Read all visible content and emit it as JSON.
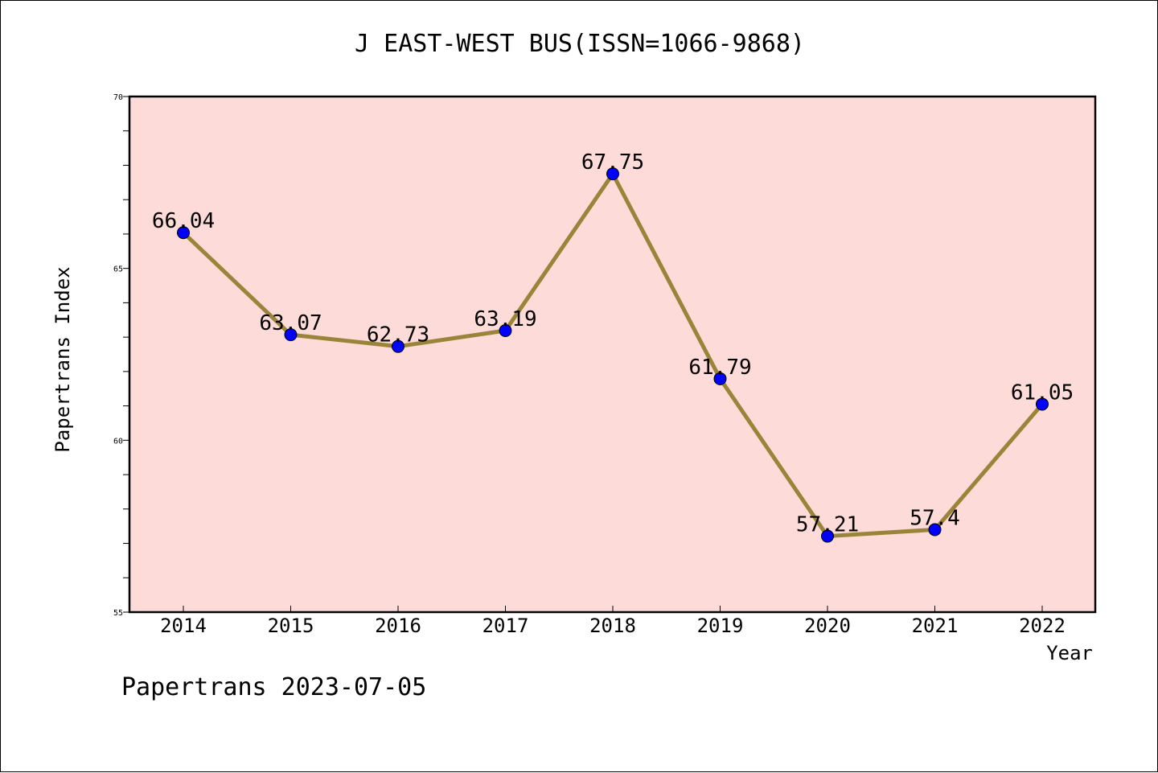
{
  "chart_data": {
    "type": "line",
    "title": "J EAST-WEST BUS(ISSN=1066-9868)",
    "xlabel": "Year",
    "ylabel": "Papertrans Index",
    "categories": [
      "2014",
      "2015",
      "2016",
      "2017",
      "2018",
      "2019",
      "2020",
      "2021",
      "2022"
    ],
    "series": [
      {
        "values": [
          66.04,
          63.07,
          62.73,
          63.19,
          67.75,
          61.79,
          57.21,
          57.4,
          61.05
        ],
        "labels": [
          "66.04",
          "63.07",
          "62.73",
          "63.19",
          "67.75",
          "61.79",
          "57.21",
          "57.4",
          "61.05"
        ]
      }
    ],
    "ylim": [
      55,
      70
    ],
    "yticks": [
      "55",
      "60",
      "65",
      "70"
    ],
    "grid": false,
    "legend": "none",
    "colors": {
      "plot_background": "#fddbd8",
      "line": "#9a8439",
      "marker": "#0000ff"
    }
  },
  "footer": "Papertrans 2023-07-05"
}
